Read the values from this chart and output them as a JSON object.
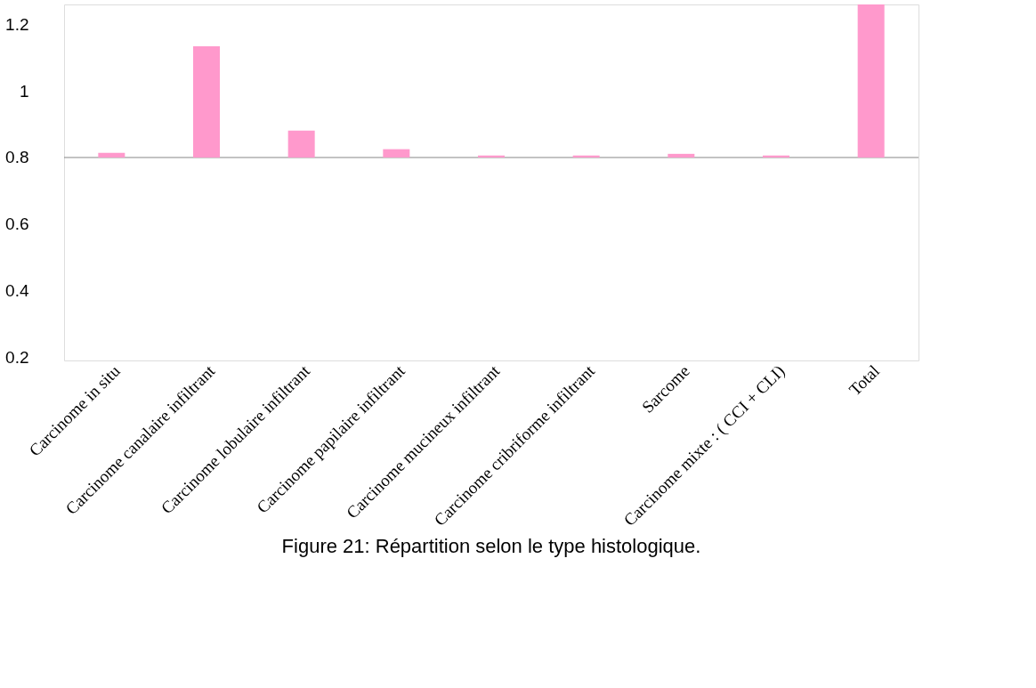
{
  "chart_data": {
    "type": "bar",
    "title": "Figure 21: Répartition selon le type histologique.",
    "categories": [
      "Carcinome in situ",
      "Carcinome canalaire infiltrant",
      "Carcinome lobulaire infiltrant",
      "Carcinome papilaire infiltrant",
      "Carcinome mucineux infiltrant",
      "Carcinome cribriforme infiltrant",
      "Sarcome",
      "Carcinome mixte : ( CCI + CLI)",
      "Total"
    ],
    "base": [
      0.8,
      0.8,
      0.8,
      0.8,
      0.8,
      0.8,
      0.8,
      0.8,
      0.8
    ],
    "values": [
      0.014,
      0.334,
      0.081,
      0.025,
      0.006,
      0.006,
      0.011,
      0.006,
      0.46
    ],
    "color": "#ff99cc",
    "ylim": [
      0.19,
      1.26
    ],
    "yticks": [
      0.2,
      0.4,
      0.6,
      0.8,
      1,
      1.2
    ],
    "ref_lines": [
      {
        "axis": "y",
        "value": 0.8,
        "color": "#888888"
      }
    ],
    "grid": false
  }
}
